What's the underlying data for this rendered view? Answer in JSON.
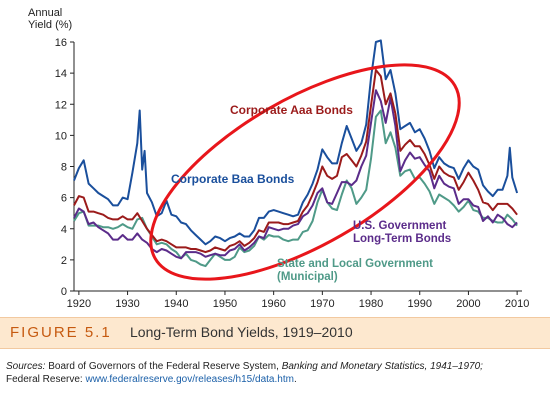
{
  "chart_data": {
    "type": "line",
    "ylabel": [
      "Annual",
      "Yield (%)"
    ],
    "xlim": [
      1919,
      2011
    ],
    "ylim": [
      0,
      16
    ],
    "x_ticks": [
      1920,
      1930,
      1940,
      1950,
      1960,
      1970,
      1980,
      1990,
      2000,
      2010
    ],
    "y_ticks": [
      0,
      2,
      4,
      6,
      8,
      10,
      12,
      14,
      16
    ],
    "colors": {
      "baa": "#1a4f9c",
      "aaa": "#9b1b1b",
      "us": "#5b2c8a",
      "muni": "#4f9a88",
      "ellipse": "#e8161b"
    },
    "series": [
      {
        "key": "baa",
        "name": "Corporate Baa Bonds",
        "x": [
          1919,
          1920,
          1921,
          1922,
          1923,
          1924,
          1925,
          1926,
          1927,
          1928,
          1929,
          1930,
          1931,
          1932,
          1932.5,
          1933,
          1933.5,
          1934,
          1935,
          1936,
          1937,
          1938,
          1939,
          1940,
          1941,
          1942,
          1943,
          1944,
          1945,
          1946,
          1947,
          1948,
          1949,
          1950,
          1951,
          1952,
          1953,
          1954,
          1955,
          1956,
          1957,
          1958,
          1959,
          1960,
          1961,
          1962,
          1963,
          1964,
          1965,
          1966,
          1967,
          1968,
          1969,
          1970,
          1971,
          1972,
          1973,
          1974,
          1975,
          1976,
          1977,
          1978,
          1979,
          1980,
          1981,
          1982,
          1983,
          1984,
          1985,
          1986,
          1987,
          1988,
          1989,
          1990,
          1991,
          1992,
          1993,
          1994,
          1995,
          1996,
          1997,
          1998,
          1999,
          2000,
          2001,
          2002,
          2003,
          2004,
          2005,
          2006,
          2007,
          2008,
          2008.5,
          2009,
          2010
        ],
        "values": [
          7.1,
          7.9,
          8.4,
          6.9,
          6.6,
          6.3,
          6.1,
          5.9,
          5.5,
          5.5,
          6.0,
          5.9,
          7.6,
          9.5,
          11.6,
          7.8,
          9.0,
          6.3,
          5.7,
          4.8,
          5.0,
          5.8,
          4.9,
          4.8,
          4.4,
          4.3,
          3.9,
          3.6,
          3.3,
          3.0,
          3.2,
          3.5,
          3.4,
          3.2,
          3.4,
          3.5,
          3.7,
          3.5,
          3.5,
          3.9,
          4.7,
          4.7,
          5.1,
          5.2,
          5.1,
          5.0,
          4.9,
          4.8,
          4.9,
          5.7,
          6.2,
          6.9,
          7.8,
          9.1,
          8.6,
          8.2,
          8.2,
          9.5,
          10.6,
          9.8,
          9.0,
          9.5,
          10.7,
          13.7,
          16.0,
          16.1,
          13.6,
          14.2,
          12.7,
          10.4,
          10.6,
          10.8,
          10.2,
          10.4,
          9.8,
          9.0,
          7.9,
          8.6,
          8.2,
          8.0,
          7.9,
          7.2,
          7.9,
          8.4,
          8.0,
          7.8,
          6.8,
          6.4,
          6.1,
          6.5,
          6.5,
          7.4,
          9.2,
          7.3,
          6.3
        ]
      },
      {
        "key": "aaa",
        "name": "Corporate Aaa Bonds",
        "x": [
          1919,
          1920,
          1921,
          1922,
          1923,
          1924,
          1925,
          1926,
          1927,
          1928,
          1929,
          1930,
          1931,
          1932,
          1933,
          1934,
          1935,
          1936,
          1937,
          1938,
          1939,
          1940,
          1941,
          1942,
          1943,
          1944,
          1945,
          1946,
          1947,
          1948,
          1949,
          1950,
          1951,
          1952,
          1953,
          1954,
          1955,
          1956,
          1957,
          1958,
          1959,
          1960,
          1961,
          1962,
          1963,
          1964,
          1965,
          1966,
          1967,
          1968,
          1969,
          1970,
          1971,
          1972,
          1973,
          1974,
          1975,
          1976,
          1977,
          1978,
          1979,
          1980,
          1981,
          1982,
          1983,
          1984,
          1985,
          1986,
          1987,
          1988,
          1989,
          1990,
          1991,
          1992,
          1993,
          1994,
          1995,
          1996,
          1997,
          1998,
          1999,
          2000,
          2001,
          2002,
          2003,
          2004,
          2005,
          2006,
          2007,
          2008,
          2009,
          2010
        ],
        "values": [
          5.5,
          6.1,
          6.0,
          5.1,
          5.1,
          5.0,
          4.9,
          4.7,
          4.6,
          4.6,
          4.8,
          4.6,
          4.6,
          5.0,
          4.5,
          4.0,
          3.6,
          3.2,
          3.3,
          3.2,
          3.0,
          2.8,
          2.8,
          2.8,
          2.7,
          2.7,
          2.6,
          2.5,
          2.6,
          2.8,
          2.7,
          2.6,
          2.9,
          3.0,
          3.2,
          2.9,
          3.1,
          3.4,
          3.9,
          3.8,
          4.4,
          4.4,
          4.4,
          4.3,
          4.3,
          4.4,
          4.5,
          5.1,
          5.5,
          6.2,
          7.0,
          8.0,
          7.4,
          7.2,
          7.4,
          8.6,
          8.8,
          8.4,
          8.0,
          8.7,
          9.6,
          11.9,
          14.2,
          13.8,
          12.0,
          12.7,
          11.4,
          9.0,
          9.4,
          9.7,
          9.3,
          9.3,
          8.8,
          8.1,
          7.2,
          8.0,
          7.6,
          7.4,
          7.3,
          6.5,
          7.0,
          7.6,
          7.1,
          6.5,
          5.7,
          5.6,
          5.2,
          5.6,
          5.6,
          5.6,
          5.3,
          4.9
        ]
      },
      {
        "key": "us",
        "name": "U.S. Government Long-Term Bonds",
        "x": [
          1919,
          1920,
          1921,
          1922,
          1923,
          1924,
          1925,
          1926,
          1927,
          1928,
          1929,
          1930,
          1931,
          1932,
          1933,
          1934,
          1935,
          1936,
          1937,
          1938,
          1939,
          1940,
          1941,
          1942,
          1943,
          1944,
          1945,
          1946,
          1947,
          1948,
          1949,
          1950,
          1951,
          1952,
          1953,
          1954,
          1955,
          1956,
          1957,
          1958,
          1959,
          1960,
          1961,
          1962,
          1963,
          1964,
          1965,
          1966,
          1967,
          1968,
          1969,
          1970,
          1971,
          1972,
          1973,
          1974,
          1975,
          1976,
          1977,
          1978,
          1979,
          1980,
          1981,
          1982,
          1983,
          1984,
          1985,
          1986,
          1987,
          1988,
          1989,
          1990,
          1991,
          1992,
          1993,
          1994,
          1995,
          1996,
          1997,
          1998,
          1999,
          2000,
          2001,
          2002,
          2003,
          2004,
          2005,
          2006,
          2007,
          2008,
          2009,
          2010
        ],
        "values": [
          4.7,
          5.3,
          5.1,
          4.3,
          4.4,
          4.1,
          3.9,
          3.7,
          3.3,
          3.3,
          3.6,
          3.3,
          3.3,
          3.7,
          3.3,
          3.1,
          2.7,
          2.5,
          2.7,
          2.6,
          2.4,
          2.2,
          2.1,
          2.5,
          2.5,
          2.5,
          2.4,
          2.2,
          2.3,
          2.4,
          2.3,
          2.3,
          2.6,
          2.7,
          3.0,
          2.6,
          2.8,
          3.1,
          3.5,
          3.4,
          4.1,
          4.0,
          3.9,
          4.0,
          4.0,
          4.2,
          4.3,
          4.8,
          5.0,
          5.5,
          6.3,
          6.6,
          5.7,
          5.6,
          6.3,
          7.0,
          7.0,
          6.8,
          7.1,
          8.0,
          8.7,
          10.8,
          12.9,
          12.2,
          10.8,
          12.4,
          10.6,
          7.7,
          8.4,
          8.9,
          8.5,
          8.6,
          8.1,
          7.7,
          6.6,
          7.4,
          6.9,
          6.7,
          6.6,
          5.6,
          5.9,
          5.9,
          5.5,
          5.4,
          4.5,
          4.8,
          4.4,
          4.9,
          4.7,
          4.3,
          4.1,
          4.4
        ]
      },
      {
        "key": "muni",
        "name": "State and Local Government (Municipal)",
        "x": [
          1919,
          1920,
          1921,
          1922,
          1923,
          1924,
          1925,
          1926,
          1927,
          1928,
          1929,
          1930,
          1931,
          1932,
          1933,
          1934,
          1935,
          1936,
          1937,
          1938,
          1939,
          1940,
          1941,
          1942,
          1943,
          1944,
          1945,
          1946,
          1947,
          1948,
          1949,
          1950,
          1951,
          1952,
          1953,
          1954,
          1955,
          1956,
          1957,
          1958,
          1959,
          1960,
          1961,
          1962,
          1963,
          1964,
          1965,
          1966,
          1967,
          1968,
          1969,
          1970,
          1971,
          1972,
          1973,
          1974,
          1975,
          1976,
          1977,
          1978,
          1979,
          1980,
          1981,
          1982,
          1983,
          1984,
          1985,
          1986,
          1987,
          1988,
          1989,
          1990,
          1991,
          1992,
          1993,
          1994,
          1995,
          1996,
          1997,
          1998,
          1999,
          2000,
          2001,
          2002,
          2003,
          2004,
          2005,
          2006,
          2007,
          2008,
          2009,
          2010
        ],
        "values": [
          4.5,
          5.0,
          5.1,
          4.2,
          4.2,
          4.2,
          4.1,
          4.1,
          4.0,
          4.1,
          4.3,
          4.1,
          4.0,
          4.6,
          4.7,
          4.0,
          3.5,
          3.0,
          3.1,
          3.0,
          2.7,
          2.5,
          2.1,
          2.4,
          2.0,
          1.9,
          1.7,
          1.6,
          2.0,
          2.4,
          2.2,
          2.0,
          2.0,
          2.2,
          2.8,
          2.5,
          2.6,
          2.9,
          3.5,
          3.3,
          3.6,
          3.5,
          3.5,
          3.3,
          3.2,
          3.3,
          3.3,
          3.8,
          3.9,
          4.5,
          5.7,
          6.5,
          5.7,
          5.3,
          5.2,
          6.2,
          7.1,
          6.6,
          5.6,
          6.0,
          6.5,
          8.5,
          11.2,
          11.6,
          9.5,
          10.2,
          9.2,
          7.4,
          7.7,
          7.8,
          7.2,
          7.3,
          6.9,
          6.4,
          5.6,
          6.2,
          6.0,
          5.8,
          5.5,
          5.1,
          5.4,
          5.8,
          5.2,
          5.1,
          4.7,
          4.7,
          4.5,
          4.4,
          4.4,
          4.9,
          4.6,
          4.2
        ]
      }
    ],
    "annotations": [
      {
        "key": "aaa",
        "lines": [
          "Corporate Aaa Bonds"
        ]
      },
      {
        "key": "baa",
        "lines": [
          "Corporate Baa Bonds"
        ]
      },
      {
        "key": "us",
        "lines": [
          "U.S. Government",
          "Long-Term Bonds"
        ]
      },
      {
        "key": "muni",
        "lines": [
          "State and Local Government",
          "(Municipal)"
        ]
      }
    ]
  },
  "caption": {
    "figure_label": "FIGURE 5.1",
    "title": "Long-Term Bond Yields, 1919–2010"
  },
  "sources": {
    "label": "Sources:",
    "text1": " Board of Governors of the Federal Reserve System, ",
    "italic": "Banking and Monetary Statistics, 1941–1970;",
    "text2": "Federal Reserve: ",
    "link": "www.federalreserve.gov/releases/h15/data.htm",
    "after_link": "."
  }
}
